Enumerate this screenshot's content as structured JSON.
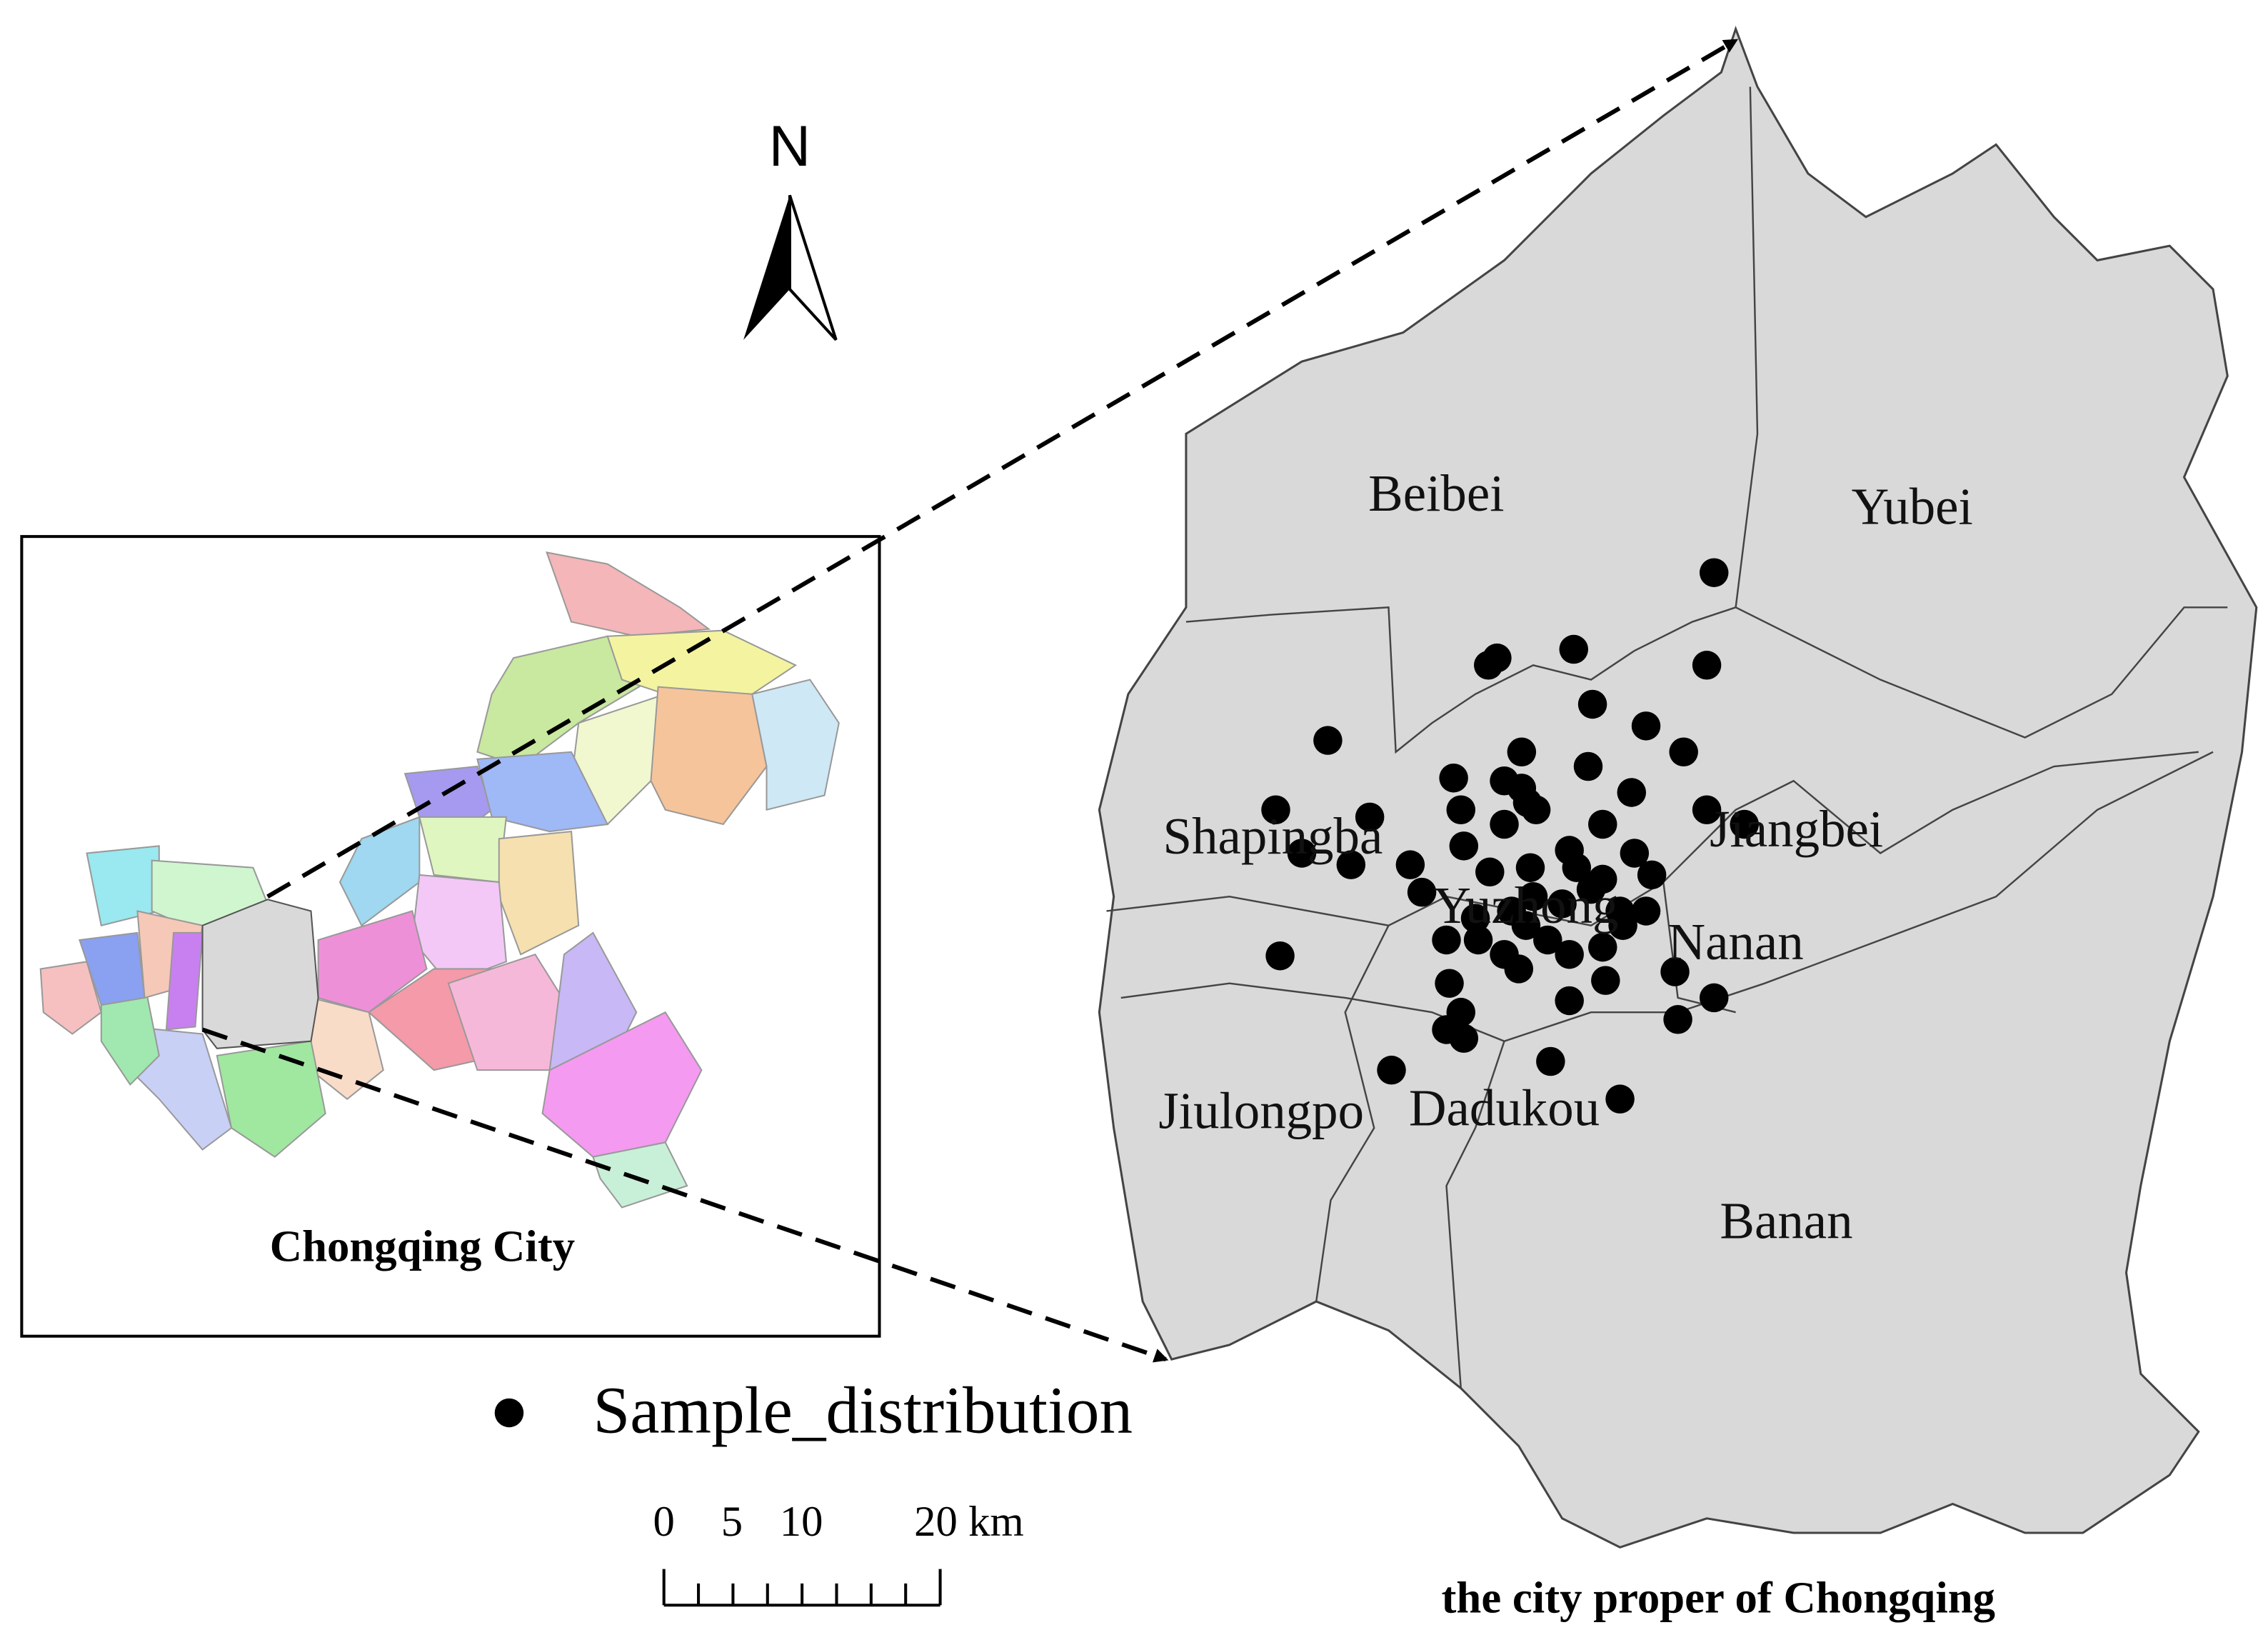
{
  "north_arrow": {
    "label": "N"
  },
  "inset": {
    "title": "Chongqing City"
  },
  "main_map": {
    "title": "the city proper of Chongqing",
    "districts": [
      "Beibei",
      "Yubei",
      "Shapingba",
      "Jiangbei",
      "Yuzhong",
      "Nanan",
      "Jiulongpo",
      "Dadukou",
      "Banan"
    ]
  },
  "legend": {
    "items": [
      {
        "label": "Sample_distribution"
      }
    ]
  },
  "scale_bar": {
    "labels": [
      "0",
      "5",
      "10",
      "20 km"
    ]
  }
}
